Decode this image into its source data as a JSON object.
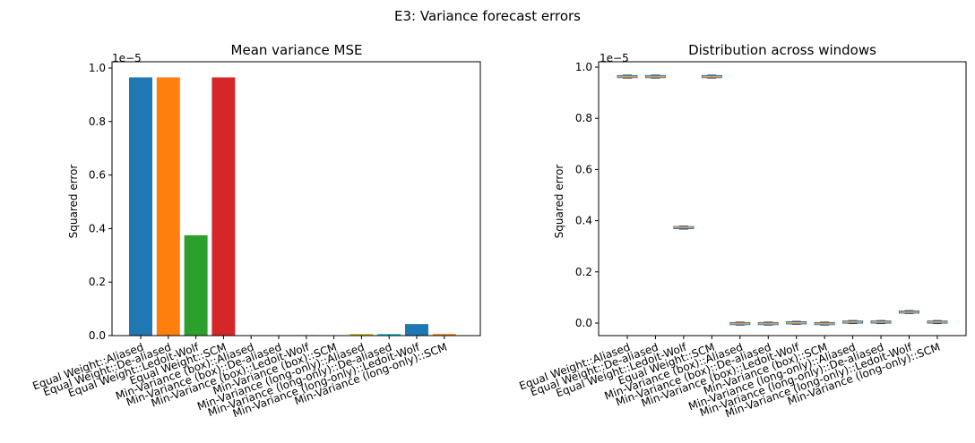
{
  "figure": {
    "suptitle": "E3: Variance forecast errors"
  },
  "chart_data": [
    {
      "type": "bar",
      "title": "Mean variance MSE",
      "xlabel": "",
      "ylabel": "Squared error",
      "scale_label": "1e−5",
      "ylim": [
        0,
        1.0
      ],
      "yticks": [
        "0.0",
        "0.2",
        "0.4",
        "0.6",
        "0.8",
        "1.0"
      ],
      "categories": [
        "Equal Weight::Aliased",
        "Equal Weight::De-aliased",
        "Equal Weight::Ledoit-Wolf",
        "Equal Weight::SCM",
        "Min-Variance (box)::Aliased",
        "Min-Variance (box)::De-aliased",
        "Min-Variance (box)::Ledoit-Wolf",
        "Min-Variance (box)::SCM",
        "Min-Variance (long-only)::Aliased",
        "Min-Variance (long-only)::De-aliased",
        "Min-Variance (long-only)::Ledoit-Wolf",
        "Min-Variance (long-only)::SCM"
      ],
      "values": [
        0.965,
        0.965,
        0.375,
        0.965,
        0.0,
        0.0,
        0.002,
        0.0,
        0.006,
        0.006,
        0.043,
        0.006
      ],
      "colors": [
        "#1f77b4",
        "#ff7f0e",
        "#2ca02c",
        "#d62728",
        "#9467bd",
        "#8c564b",
        "#e377c2",
        "#7f7f7f",
        "#bcbd22",
        "#17becf",
        "#1f77b4",
        "#ff7f0e"
      ],
      "grid": false
    },
    {
      "type": "box",
      "title": "Distribution across windows",
      "xlabel": "",
      "ylabel": "Squared error",
      "scale_label": "1e−5",
      "ylim": [
        0,
        1.0
      ],
      "yticks": [
        "0.0",
        "0.2",
        "0.4",
        "0.6",
        "0.8",
        "1.0"
      ],
      "categories": [
        "Equal Weight::Aliased",
        "Equal Weight::De-aliased",
        "Equal Weight::Ledoit-Wolf",
        "Equal Weight::SCM",
        "Min-Variance (box)::Aliased",
        "Min-Variance (box)::De-aliased",
        "Min-Variance (box)::Ledoit-Wolf",
        "Min-Variance (box)::SCM",
        "Min-Variance (long-only)::Aliased",
        "Min-Variance (long-only)::De-aliased",
        "Min-Variance (long-only)::Ledoit-Wolf",
        "Min-Variance (long-only)::SCM"
      ],
      "medians": [
        0.963,
        0.963,
        0.373,
        0.963,
        -0.002,
        -0.002,
        0.001,
        -0.002,
        0.004,
        0.004,
        0.043,
        0.004
      ],
      "box_color": "#1f77b4",
      "median_color": "#ff7f0e",
      "grid": false
    }
  ]
}
